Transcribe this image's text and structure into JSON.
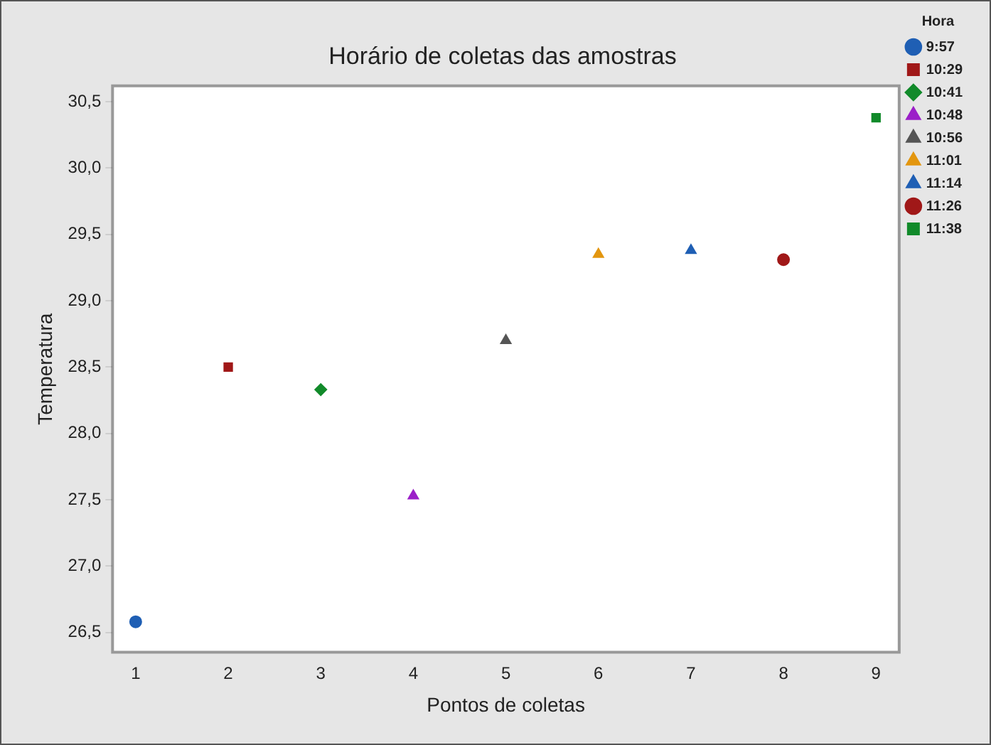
{
  "chart_data": {
    "type": "scatter",
    "title": "Horário de coletas das amostras",
    "xlabel": "Pontos de coletas",
    "ylabel": "Temperatura",
    "legend_title": "Hora",
    "legend": "right",
    "grid": false,
    "xlim": [
      0.75,
      9.25
    ],
    "xticks": [
      1,
      2,
      3,
      4,
      5,
      6,
      7,
      8,
      9
    ],
    "ylim": [
      26.35,
      30.62
    ],
    "yticks": [
      {
        "value": 26.5,
        "label": "26,5"
      },
      {
        "value": 27,
        "label": "27,0"
      },
      {
        "value": 27.5,
        "label": "27,5"
      },
      {
        "value": 28,
        "label": "28,0"
      },
      {
        "value": 28.5,
        "label": "28,5"
      },
      {
        "value": 29,
        "label": "29,0"
      },
      {
        "value": 29.5,
        "label": "29,5"
      },
      {
        "value": 30,
        "label": "30,0"
      },
      {
        "value": 30.5,
        "label": "30,5"
      }
    ],
    "series": [
      {
        "name": "9:57",
        "color": "#1f5fb4",
        "marker": "circle",
        "x": [
          1
        ],
        "values": [
          26.58
        ]
      },
      {
        "name": "10:29",
        "color": "#a01818",
        "marker": "square",
        "x": [
          2
        ],
        "values": [
          28.5
        ]
      },
      {
        "name": "10:41",
        "color": "#118a2a",
        "marker": "diamond",
        "x": [
          3
        ],
        "values": [
          28.33
        ]
      },
      {
        "name": "10:48",
        "color": "#9b1fc8",
        "marker": "triangle",
        "x": [
          4
        ],
        "values": [
          27.53
        ]
      },
      {
        "name": "10:56",
        "color": "#555555",
        "marker": "triangle",
        "x": [
          5
        ],
        "values": [
          28.7
        ]
      },
      {
        "name": "11:01",
        "color": "#e3960f",
        "marker": "triangle",
        "x": [
          6
        ],
        "values": [
          29.35
        ]
      },
      {
        "name": "11:14",
        "color": "#1f5fb4",
        "marker": "triangle",
        "x": [
          7
        ],
        "values": [
          29.38
        ]
      },
      {
        "name": "11:26",
        "color": "#a01818",
        "marker": "circle",
        "x": [
          8
        ],
        "values": [
          29.31
        ]
      },
      {
        "name": "11:38",
        "color": "#118a2a",
        "marker": "square",
        "x": [
          9
        ],
        "values": [
          30.38
        ]
      }
    ]
  }
}
